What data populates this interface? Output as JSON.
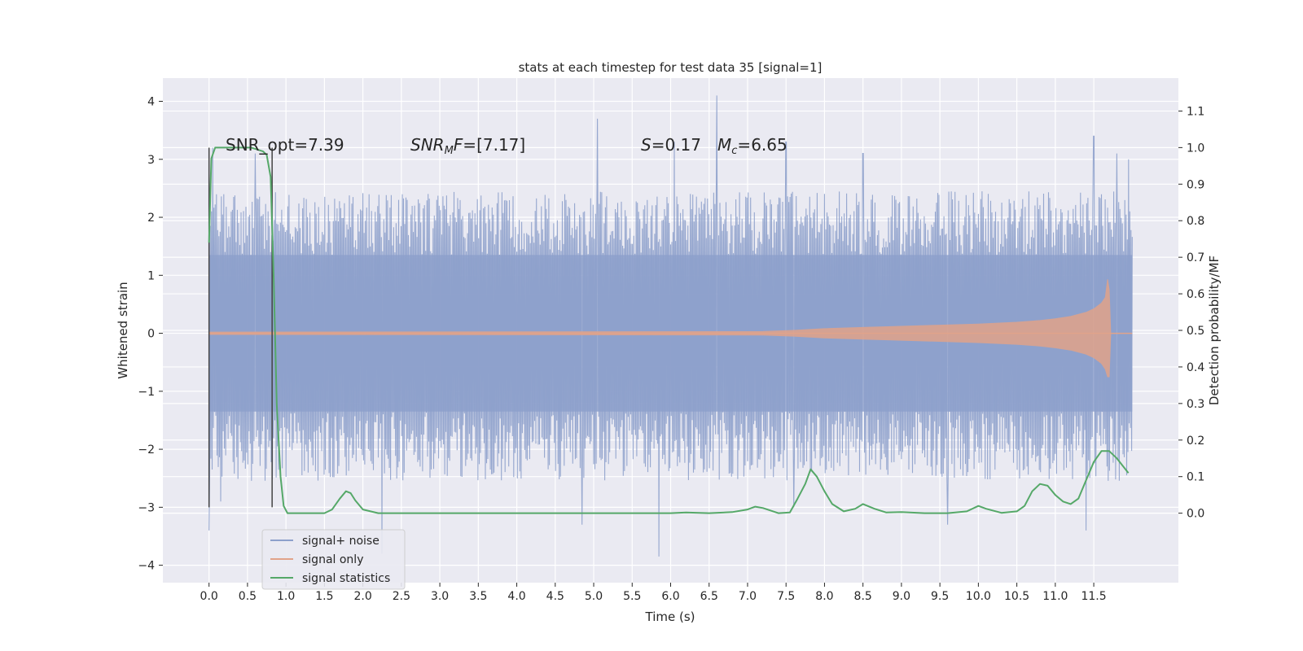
{
  "chart_data": {
    "type": "line",
    "title": "stats at each timestep for test data 35 [signal=1]",
    "xlabel": "Time (s)",
    "ylabel": "Whitened strain",
    "y2label": "Detection probability/MF",
    "xlim": [
      -0.6,
      12.6
    ],
    "ylim": [
      -4.3,
      4.4
    ],
    "y2lim": [
      -0.19,
      1.19
    ],
    "x_ticks": [
      "0.0",
      "0.5",
      "1.0",
      "1.5",
      "2.0",
      "2.5",
      "3.0",
      "3.5",
      "4.0",
      "4.5",
      "5.0",
      "5.5",
      "6.0",
      "6.5",
      "7.0",
      "7.5",
      "8.0",
      "8.5",
      "9.0",
      "9.5",
      "10.0",
      "10.5",
      "11.0",
      "11.5"
    ],
    "y_ticks": [
      "−4",
      "−3",
      "−2",
      "−1",
      "0",
      "1",
      "2",
      "3",
      "4"
    ],
    "y2_ticks": [
      "0.0",
      "0.1",
      "0.2",
      "0.3",
      "0.4",
      "0.5",
      "0.6",
      "0.7",
      "0.8",
      "0.9",
      "1.0",
      "1.1"
    ],
    "annotations": {
      "snr_opt": "SNR_opt=7.39",
      "snr_mf": "[7.17]",
      "s_value": "0.17",
      "mc_value": "6.65"
    },
    "vertical_markers": [
      0.0,
      0.82
    ],
    "legend": {
      "placement": "lower-left",
      "entries": [
        "signal+ noise",
        "signal only",
        "signal statistics"
      ]
    },
    "colors": {
      "noise": "#8da0cb",
      "signal": "#e1a38a",
      "stat": "#55a868",
      "background": "#eaeaf2",
      "grid": "#ffffff",
      "marker": "#444444"
    },
    "series": [
      {
        "name": "signal statistics",
        "axis": "right",
        "x": [
          0.0,
          0.03,
          0.08,
          0.15,
          0.25,
          0.4,
          0.55,
          0.7,
          0.75,
          0.8,
          0.84,
          0.88,
          0.93,
          0.97,
          1.02,
          1.1,
          1.3,
          1.5,
          1.6,
          1.7,
          1.78,
          1.84,
          1.9,
          2.0,
          2.2,
          2.5,
          3.0,
          3.5,
          4.0,
          4.5,
          5.0,
          5.5,
          6.0,
          6.2,
          6.5,
          6.8,
          7.0,
          7.1,
          7.2,
          7.4,
          7.55,
          7.65,
          7.75,
          7.82,
          7.9,
          8.0,
          8.1,
          8.25,
          8.4,
          8.5,
          8.65,
          8.8,
          9.0,
          9.3,
          9.6,
          9.85,
          10.0,
          10.1,
          10.3,
          10.5,
          10.6,
          10.7,
          10.8,
          10.9,
          11.0,
          11.1,
          11.2,
          11.3,
          11.4,
          11.5,
          11.6,
          11.7,
          11.8,
          11.95
        ],
        "values": [
          0.74,
          0.97,
          1.0,
          1.0,
          1.0,
          1.0,
          1.0,
          0.99,
          0.98,
          0.92,
          0.65,
          0.3,
          0.1,
          0.02,
          0.0,
          0.0,
          0.0,
          0.0,
          0.01,
          0.04,
          0.06,
          0.055,
          0.035,
          0.01,
          0.0,
          0.0,
          0.0,
          0.0,
          0.0,
          0.0,
          0.0,
          0.0,
          0.0,
          0.002,
          0.0,
          0.003,
          0.01,
          0.018,
          0.014,
          0.0,
          0.002,
          0.04,
          0.08,
          0.12,
          0.1,
          0.06,
          0.025,
          0.005,
          0.012,
          0.025,
          0.012,
          0.002,
          0.003,
          0.0,
          0.0,
          0.005,
          0.02,
          0.012,
          0.001,
          0.005,
          0.02,
          0.06,
          0.08,
          0.075,
          0.05,
          0.032,
          0.025,
          0.04,
          0.09,
          0.14,
          0.17,
          0.17,
          0.15,
          0.11
        ]
      },
      {
        "name": "signal only",
        "axis": "left",
        "x": [
          0.0,
          7.2,
          7.6,
          8.0,
          8.5,
          9.0,
          9.5,
          10.0,
          10.5,
          10.8,
          11.0,
          11.2,
          11.4,
          11.5,
          11.6,
          11.65,
          11.68,
          11.7,
          11.72
        ],
        "envelope": [
          0.02,
          0.03,
          0.05,
          0.08,
          0.1,
          0.12,
          0.14,
          0.16,
          0.19,
          0.22,
          0.25,
          0.29,
          0.36,
          0.42,
          0.52,
          0.62,
          0.93,
          0.75,
          0.0
        ]
      },
      {
        "name": "signal+ noise",
        "axis": "left",
        "x_range": [
          0.0,
          12.0
        ],
        "spread": 1.0,
        "peaks": [
          [
            0.05,
            3.2
          ],
          [
            0.6,
            3.1
          ],
          [
            5.05,
            3.7
          ],
          [
            6.05,
            3.3
          ],
          [
            6.6,
            4.1
          ],
          [
            7.5,
            3.3
          ],
          [
            8.5,
            3.1
          ],
          [
            11.5,
            3.4
          ],
          [
            11.95,
            3.0
          ],
          [
            11.8,
            3.1
          ]
        ],
        "troughs": [
          [
            0.0,
            -3.4
          ],
          [
            0.15,
            -2.9
          ],
          [
            2.25,
            -3.8
          ],
          [
            4.85,
            -3.3
          ],
          [
            5.85,
            -3.85
          ],
          [
            7.6,
            -3.0
          ],
          [
            9.6,
            -3.3
          ],
          [
            11.4,
            -3.4
          ]
        ]
      }
    ]
  }
}
